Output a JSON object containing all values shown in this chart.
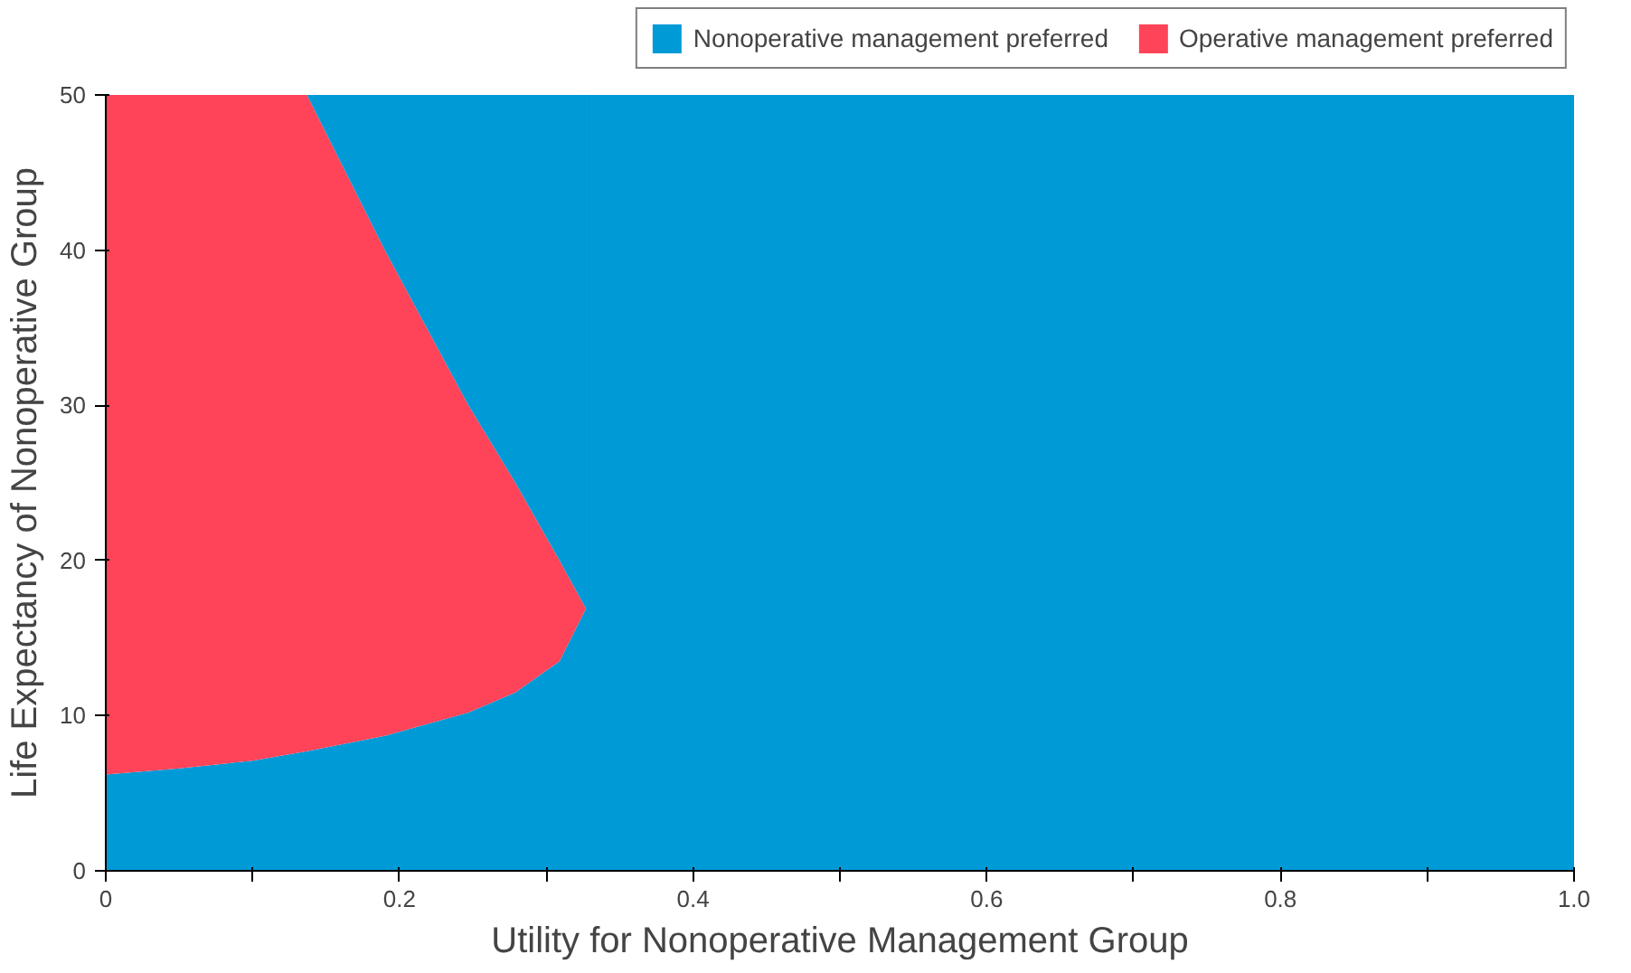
{
  "chart_data": {
    "type": "area",
    "stacked": true,
    "xlabel": "Utility for Nonoperative Management Group",
    "ylabel": "Life Expectancy of Nonoperative Group",
    "x": [
      0,
      0.05,
      0.1,
      0.137,
      0.19,
      0.247,
      0.279,
      0.309,
      0.327,
      0.327,
      1.0
    ],
    "series": [
      {
        "name": "Nonoperative management preferred",
        "color": "#009ad6",
        "values": [
          6.2,
          6.6,
          7.1,
          7.7,
          8.7,
          10.2,
          11.5,
          13.5,
          16.9,
          50,
          50
        ]
      },
      {
        "name": "Operative management preferred",
        "color": "#ff4359",
        "values": [
          43.8,
          43.4,
          42.9,
          42.3,
          31.3,
          19.8,
          13.5,
          6.5,
          0,
          null,
          null
        ]
      },
      {
        "color": "#009ad6",
        "values": [
          0,
          0,
          0,
          0,
          10,
          20,
          25,
          30,
          33.1,
          null,
          null
        ]
      }
    ],
    "xlim": [
      0,
      1
    ],
    "ylim": [
      0,
      50
    ],
    "xticks": [
      0,
      {
        "value": 0.1,
        "label": null
      },
      0.2,
      {
        "value": 0.3,
        "label": null
      },
      0.4,
      {
        "value": 0.5,
        "label": null
      },
      0.6,
      {
        "value": 0.7,
        "label": null
      },
      0.8,
      {
        "value": 0.9,
        "label": null
      },
      {
        "value": 1.0,
        "label": "1.0"
      }
    ],
    "yticks": [
      0,
      10,
      20,
      30,
      40,
      50
    ],
    "grid": false,
    "legend": "top right"
  }
}
